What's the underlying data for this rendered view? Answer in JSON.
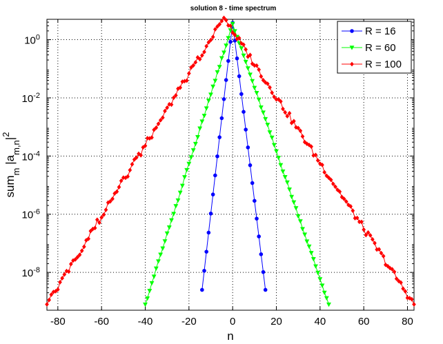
{
  "chart_data": {
    "type": "line",
    "title": "solution 8 - time spectrum",
    "xlabel": "n",
    "ylabel": "sum_m |a_m,n|^2",
    "ylabel_parts": {
      "base": "sum",
      "sub1": "m",
      "mid": " |a",
      "sub2": "m,n",
      "tail": "|",
      "sup": "2"
    },
    "xlim": [
      -85,
      83
    ],
    "ylim_exponent": [
      -9.3,
      0.7
    ],
    "yscale": "log",
    "grid": true,
    "legend_position": "top-right",
    "x_ticks": [
      -80,
      -60,
      -40,
      -20,
      0,
      20,
      40,
      60,
      80
    ],
    "x_tick_labels": [
      "-80",
      "-60",
      "-40",
      "-20",
      "0",
      "20",
      "40",
      "60",
      "80"
    ],
    "y_tick_exponents": [
      0,
      -2,
      -4,
      -6,
      -8
    ],
    "y_tick_labels": [
      {
        "base": "10",
        "exp": "0"
      },
      {
        "base": "10",
        "exp": "-2"
      },
      {
        "base": "10",
        "exp": "-4"
      },
      {
        "base": "10",
        "exp": "-6"
      },
      {
        "base": "10",
        "exp": "-8"
      }
    ],
    "series": [
      {
        "name": "R = 16",
        "color": "#0000ff",
        "marker": "circle",
        "x_start": -14,
        "x_end": 15,
        "peak_x": 0,
        "peak_log": 0.58,
        "left_log_at_start": -8.6,
        "right_log_at_end": -8.6,
        "noise": 0.0
      },
      {
        "name": "R = 60",
        "color": "#00ff00",
        "marker": "triangle-down",
        "x_start": -40,
        "x_end": 44,
        "peak_x": 0,
        "peak_log": 0.55,
        "left_log_at_start": -9.1,
        "right_log_at_end": -9.1,
        "noise": 0.04
      },
      {
        "name": "R = 100",
        "color": "#ff0000",
        "marker": "diamond",
        "x_start": -85,
        "x_end": 83,
        "peak_x": -4,
        "peak_log": 0.75,
        "left_log_at_start": -9.1,
        "right_log_at_end": -9.1,
        "noise": 0.12
      }
    ]
  }
}
